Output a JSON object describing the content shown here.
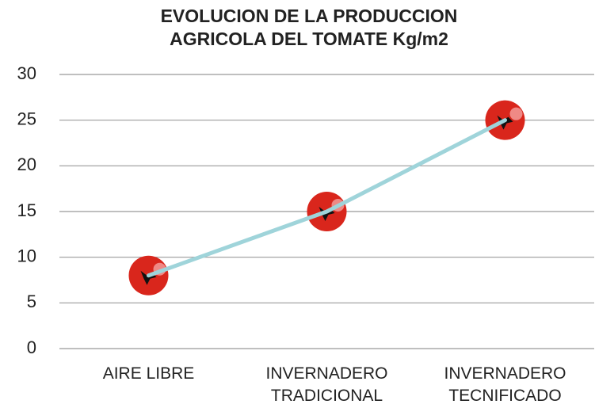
{
  "chart_data": {
    "type": "line",
    "title": "EVOLUCION DE LA PRODUCCION AGRICOLA DEL TOMATE Kg/m2",
    "categories": [
      "AIRE LIBRE",
      "INVERNADERO TRADICIONAL",
      "INVERNADERO TECNIFICADO"
    ],
    "values": [
      8,
      15,
      25
    ],
    "color": "#9fd4da",
    "marker_color": "#d9261c",
    "ylim": [
      0,
      30
    ],
    "yticks": [
      0,
      5,
      10,
      15,
      20,
      25,
      30
    ],
    "grid": true
  }
}
